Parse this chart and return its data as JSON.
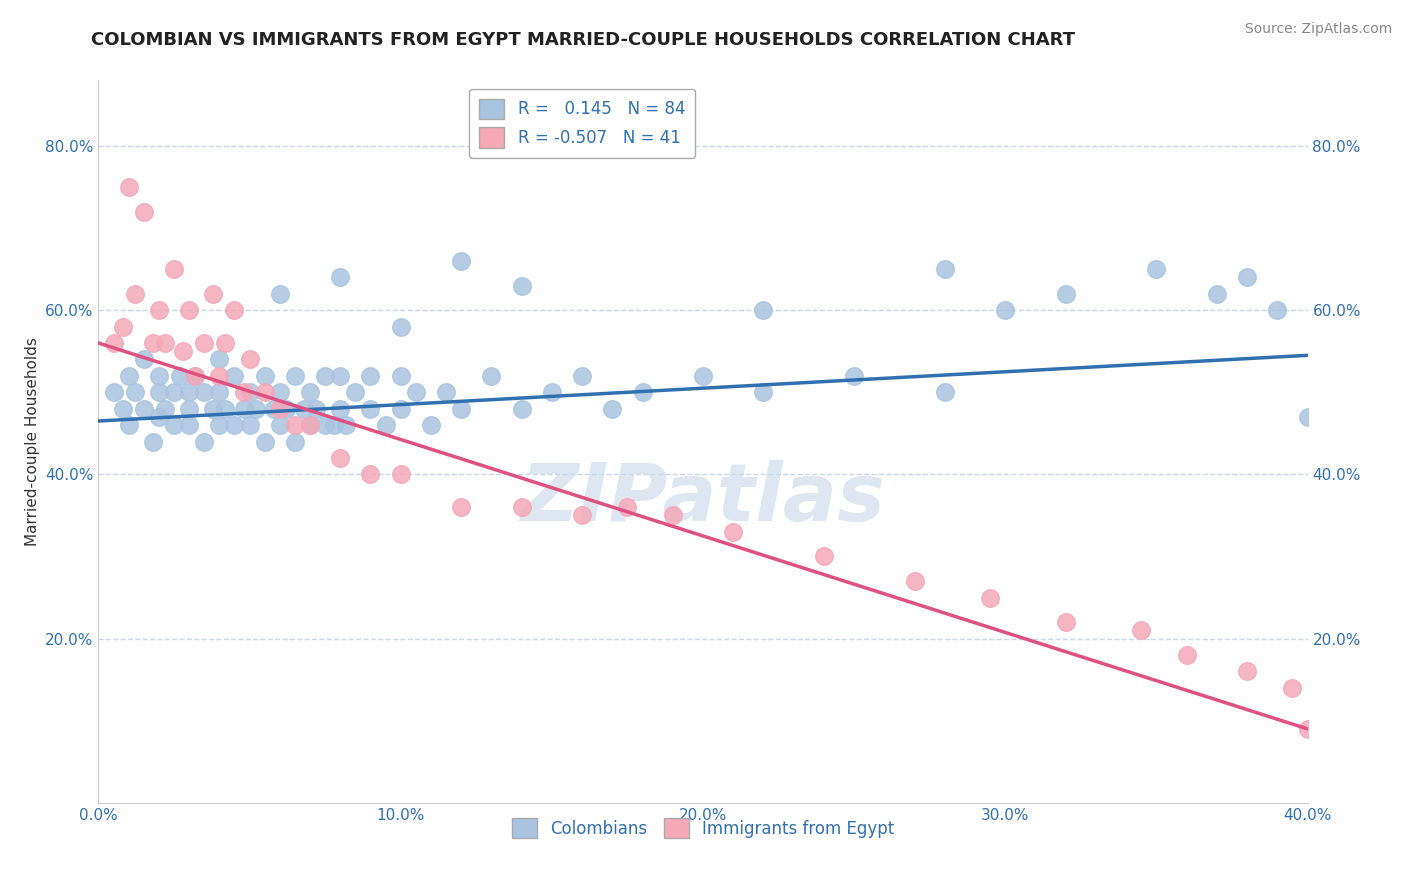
{
  "title": "COLOMBIAN VS IMMIGRANTS FROM EGYPT MARRIED-COUPLE HOUSEHOLDS CORRELATION CHART",
  "source": "Source: ZipAtlas.com",
  "ylabel": "Married-couple Households",
  "xlim": [
    0.0,
    0.4
  ],
  "ylim": [
    0.0,
    0.88
  ],
  "xtick_labels": [
    "0.0%",
    "",
    "",
    "",
    "",
    "10.0%",
    "",
    "",
    "",
    "",
    "20.0%",
    "",
    "",
    "",
    "",
    "30.0%",
    "",
    "",
    "",
    "",
    "40.0%"
  ],
  "xtick_vals": [
    0.0,
    0.02,
    0.04,
    0.06,
    0.08,
    0.1,
    0.12,
    0.14,
    0.16,
    0.18,
    0.2,
    0.22,
    0.24,
    0.26,
    0.28,
    0.3,
    0.32,
    0.34,
    0.36,
    0.38,
    0.4
  ],
  "ytick_labels": [
    "20.0%",
    "40.0%",
    "60.0%",
    "80.0%"
  ],
  "ytick_vals": [
    0.2,
    0.4,
    0.6,
    0.8
  ],
  "legend_label1": "Colombians",
  "legend_label2": "Immigrants from Egypt",
  "R1": 0.145,
  "N1": 84,
  "R2": -0.507,
  "N2": 41,
  "color1": "#a8c4e0",
  "color2": "#f4a8b8",
  "line_color1": "#3070b0",
  "line_color2": "#e05080",
  "watermark": "ZIPatlas",
  "title_fontsize": 13,
  "source_fontsize": 10,
  "scatter1_x": [
    0.005,
    0.008,
    0.01,
    0.01,
    0.012,
    0.015,
    0.015,
    0.018,
    0.02,
    0.02,
    0.02,
    0.022,
    0.025,
    0.025,
    0.027,
    0.03,
    0.03,
    0.03,
    0.032,
    0.035,
    0.035,
    0.038,
    0.04,
    0.04,
    0.04,
    0.042,
    0.045,
    0.045,
    0.048,
    0.05,
    0.05,
    0.052,
    0.055,
    0.055,
    0.058,
    0.06,
    0.06,
    0.062,
    0.065,
    0.065,
    0.068,
    0.07,
    0.07,
    0.072,
    0.075,
    0.075,
    0.078,
    0.08,
    0.08,
    0.082,
    0.085,
    0.09,
    0.09,
    0.095,
    0.1,
    0.1,
    0.105,
    0.11,
    0.115,
    0.12,
    0.13,
    0.14,
    0.15,
    0.16,
    0.17,
    0.18,
    0.2,
    0.22,
    0.25,
    0.28,
    0.22,
    0.28,
    0.3,
    0.32,
    0.35,
    0.37,
    0.38,
    0.39,
    0.4,
    0.06,
    0.08,
    0.1,
    0.12,
    0.14
  ],
  "scatter1_y": [
    0.5,
    0.48,
    0.52,
    0.46,
    0.5,
    0.48,
    0.54,
    0.44,
    0.5,
    0.52,
    0.47,
    0.48,
    0.5,
    0.46,
    0.52,
    0.48,
    0.5,
    0.46,
    0.52,
    0.44,
    0.5,
    0.48,
    0.46,
    0.5,
    0.54,
    0.48,
    0.46,
    0.52,
    0.48,
    0.46,
    0.5,
    0.48,
    0.44,
    0.52,
    0.48,
    0.46,
    0.5,
    0.48,
    0.44,
    0.52,
    0.48,
    0.46,
    0.5,
    0.48,
    0.46,
    0.52,
    0.46,
    0.48,
    0.52,
    0.46,
    0.5,
    0.48,
    0.52,
    0.46,
    0.48,
    0.52,
    0.5,
    0.46,
    0.5,
    0.48,
    0.52,
    0.48,
    0.5,
    0.52,
    0.48,
    0.5,
    0.52,
    0.5,
    0.52,
    0.5,
    0.6,
    0.65,
    0.6,
    0.62,
    0.65,
    0.62,
    0.64,
    0.6,
    0.47,
    0.62,
    0.64,
    0.58,
    0.66,
    0.63
  ],
  "scatter2_x": [
    0.005,
    0.008,
    0.01,
    0.012,
    0.015,
    0.018,
    0.02,
    0.022,
    0.025,
    0.028,
    0.03,
    0.032,
    0.035,
    0.038,
    0.04,
    0.042,
    0.045,
    0.048,
    0.05,
    0.055,
    0.06,
    0.065,
    0.07,
    0.08,
    0.09,
    0.1,
    0.12,
    0.14,
    0.16,
    0.175,
    0.19,
    0.21,
    0.24,
    0.27,
    0.295,
    0.32,
    0.345,
    0.36,
    0.38,
    0.395,
    0.4
  ],
  "scatter2_y": [
    0.56,
    0.58,
    0.75,
    0.62,
    0.72,
    0.56,
    0.6,
    0.56,
    0.65,
    0.55,
    0.6,
    0.52,
    0.56,
    0.62,
    0.52,
    0.56,
    0.6,
    0.5,
    0.54,
    0.5,
    0.48,
    0.46,
    0.46,
    0.42,
    0.4,
    0.4,
    0.36,
    0.36,
    0.35,
    0.36,
    0.35,
    0.33,
    0.3,
    0.27,
    0.25,
    0.22,
    0.21,
    0.18,
    0.16,
    0.14,
    0.09
  ],
  "line1_x": [
    0.0,
    0.4
  ],
  "line1_y": [
    0.465,
    0.545
  ],
  "line2_x": [
    0.0,
    0.4
  ],
  "line2_y": [
    0.56,
    0.09
  ]
}
